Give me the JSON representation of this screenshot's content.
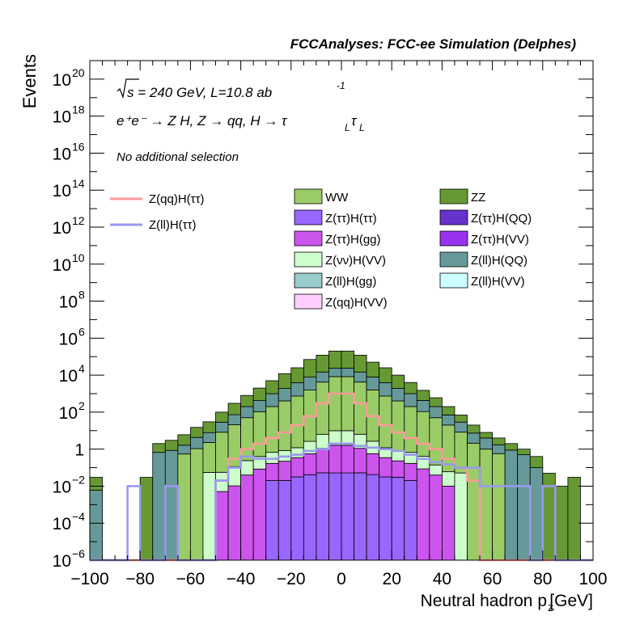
{
  "chart_data": {
    "type": "bar",
    "title": "FCCAnalyses: FCC-ee Simulation (Delphes)",
    "xlabel_main": "Neutral hadron p",
    "xlabel_sub": "z",
    "xlabel_unit": "[GeV]",
    "ylabel": "Events",
    "xlim": [
      -100,
      100
    ],
    "ylim": [
      1e-06,
      1e+21
    ],
    "y_scale": "log",
    "x_ticks": [
      -100,
      -80,
      -60,
      -40,
      -20,
      0,
      20,
      40,
      60,
      80,
      100
    ],
    "x_tick_labels": [
      "−100",
      "−80",
      "−60",
      "−40",
      "−20",
      "0",
      "20",
      "40",
      "60",
      "80",
      "100"
    ],
    "y_ticks": [
      {
        "value": 1e+20,
        "base": "10",
        "exp": "20"
      },
      {
        "value": 1e+18,
        "base": "10",
        "exp": "18"
      },
      {
        "value": 1e+16,
        "base": "10",
        "exp": "16"
      },
      {
        "value": 100000000000000.0,
        "base": "10",
        "exp": "14"
      },
      {
        "value": 1000000000000.0,
        "base": "10",
        "exp": "12"
      },
      {
        "value": 10000000000.0,
        "base": "10",
        "exp": "10"
      },
      {
        "value": 100000000.0,
        "base": "10",
        "exp": "8"
      },
      {
        "value": 1000000.0,
        "base": "10",
        "exp": "6"
      },
      {
        "value": 10000.0,
        "base": "10",
        "exp": "4"
      },
      {
        "value": 100.0,
        "base": "10",
        "exp": "2"
      },
      {
        "value": 1,
        "base": "1",
        "exp": ""
      },
      {
        "value": 0.01,
        "base": "10",
        "exp": "−2"
      },
      {
        "value": 0.0001,
        "base": "10",
        "exp": "−4"
      },
      {
        "value": 1e-06,
        "base": "10",
        "exp": "−6"
      }
    ],
    "annotations": {
      "energy_main": "s = 240 GeV, L=10.8 ab",
      "energy_sup": "-1",
      "process_main": "e⁺e⁻ → Z H, Z → qq, H → τ",
      "process_sub1": "L",
      "process_mid": "τ",
      "process_sub2": "L",
      "selection": "No additional selection"
    },
    "bin_edges_start": -100,
    "bin_width": 5,
    "stack_totals": [
      0.03,
      1e-06,
      1e-06,
      1e-06,
      0.03,
      2,
      3,
      6,
      15,
      30,
      100,
      300,
      800,
      2000,
      5000,
      12000,
      25000,
      70000,
      120000,
      200000,
      200000,
      120000,
      50000,
      25000,
      10000,
      4000,
      1500,
      600,
      200,
      70,
      20,
      8,
      4,
      2,
      1,
      0.4,
      0.05,
      0.01,
      0.03,
      1e-06
    ],
    "stack_segments": [
      {
        "name": "Z(ττ)H(ττ)",
        "color": "#9966ff",
        "values": [
          0,
          0,
          0,
          0,
          0,
          0,
          0,
          0,
          0,
          0,
          0,
          0,
          0,
          0,
          0.02,
          0.02,
          0.03,
          0.04,
          0.05,
          0.05,
          0.05,
          0.05,
          0.04,
          0.03,
          0.03,
          0.02,
          0,
          0,
          0,
          0,
          0,
          0,
          0,
          0,
          0,
          0,
          0,
          0,
          0,
          0
        ]
      },
      {
        "name": "Z(ττ)H(gg)",
        "color": "#cc55ee",
        "values": [
          0,
          0,
          0,
          0,
          0,
          0,
          0,
          0,
          0,
          0,
          0.005,
          0.01,
          0.04,
          0.08,
          0.15,
          0.2,
          0.3,
          0.5,
          1,
          1.5,
          1.5,
          1,
          0.5,
          0.3,
          0.2,
          0.15,
          0.08,
          0.04,
          0.01,
          0,
          0,
          0,
          0,
          0,
          0,
          0,
          0,
          0,
          0,
          0
        ]
      },
      {
        "name": "Z(νν)H(VV)",
        "color": "#ccffcc",
        "values": [
          0,
          0,
          0,
          0,
          0,
          0,
          0,
          0,
          0,
          0.05,
          0.05,
          0.1,
          0.2,
          0.3,
          0.5,
          0.6,
          0.8,
          2,
          5,
          8,
          8,
          5,
          2,
          0.8,
          0.6,
          0.5,
          0.3,
          0.1,
          0.05,
          0.05,
          0,
          0,
          0,
          0,
          0,
          0,
          0,
          0,
          0,
          0
        ]
      },
      {
        "name": "WW",
        "color": "#99cc66",
        "values": [
          0,
          0,
          0,
          0,
          0,
          0,
          0,
          0.5,
          1,
          2,
          8,
          20,
          50,
          100,
          200,
          400,
          700,
          1500,
          4000,
          8000,
          8000,
          4000,
          1500,
          700,
          400,
          200,
          100,
          50,
          20,
          8,
          2,
          1,
          0.5,
          0,
          0,
          0,
          0,
          0,
          0,
          0
        ]
      },
      {
        "name": "Z(ll)H(QQ)",
        "color": "#669999",
        "values": [
          0.005,
          0,
          0,
          0,
          0,
          0.5,
          0.8,
          1,
          3,
          5,
          20,
          50,
          150,
          300,
          800,
          1500,
          3000,
          6000,
          10000,
          15000,
          15000,
          10000,
          6000,
          3000,
          1500,
          800,
          300,
          150,
          50,
          20,
          5,
          3,
          1,
          0.8,
          0.5,
          0.1,
          0,
          0,
          0,
          0
        ]
      },
      {
        "name": "ZZ",
        "color": "#669933",
        "values": [
          0.02,
          0,
          0,
          0,
          0.03,
          1,
          2,
          4,
          10,
          20,
          70,
          220,
          600,
          1500,
          4000,
          10000,
          20000,
          60000,
          100000,
          170000,
          170000,
          100000,
          40000,
          20000,
          8000,
          3000,
          1000,
          400,
          130,
          40,
          12,
          4,
          2,
          1,
          0.5,
          0.3,
          0.05,
          0.01,
          0.03,
          0
        ]
      }
    ],
    "line_series": [
      {
        "name": "Z(qq)H(ττ)",
        "color": "#ff9999",
        "values": [
          1e-06,
          1e-06,
          1e-06,
          1e-06,
          1e-06,
          1e-06,
          1e-06,
          1e-06,
          1e-06,
          1e-06,
          0.02,
          0.3,
          1,
          2,
          4,
          8,
          20,
          60,
          300,
          1000,
          1000,
          300,
          60,
          20,
          8,
          4,
          2,
          1,
          0.3,
          0.1,
          0.02,
          1e-06,
          1e-06,
          1e-06,
          1e-06,
          1e-06,
          1e-06,
          1e-06,
          1e-06,
          1e-06
        ]
      },
      {
        "name": "Z(ll)H(ττ)",
        "color": "#9999ee",
        "values": [
          1e-06,
          1e-06,
          1e-06,
          0.01,
          1e-06,
          1e-06,
          0.01,
          1e-06,
          1e-06,
          1e-06,
          0.02,
          0.1,
          0.4,
          0.3,
          0.3,
          0.4,
          0.5,
          0.8,
          1,
          2,
          2,
          1.5,
          1.2,
          1,
          0.8,
          0.5,
          0.3,
          0.2,
          0.15,
          0.1,
          0.1,
          0.01,
          0.01,
          0.01,
          0.01,
          1e-06,
          0.01,
          1e-06,
          1e-06,
          1e-06
        ]
      }
    ],
    "legend_lines": [
      {
        "label": "Z(qq)H(ττ)",
        "color": "#ff9999"
      },
      {
        "label": "Z(ll)H(ττ)",
        "color": "#9999ee"
      }
    ],
    "legend_fills": [
      {
        "label": "WW",
        "color": "#99cc66"
      },
      {
        "label": "ZZ",
        "color": "#669933"
      },
      {
        "label": "Z(ττ)H(ττ)",
        "color": "#9966ff"
      },
      {
        "label": "Z(ττ)H(QQ)",
        "color": "#6633cc"
      },
      {
        "label": "Z(ττ)H(gg)",
        "color": "#cc55ee"
      },
      {
        "label": "Z(ττ)H(VV)",
        "color": "#9933ee"
      },
      {
        "label": "Z(νν)H(VV)",
        "color": "#ccffcc"
      },
      {
        "label": "Z(ll)H(QQ)",
        "color": "#669999"
      },
      {
        "label": "Z(ll)H(gg)",
        "color": "#99cccc"
      },
      {
        "label": "Z(ll)H(VV)",
        "color": "#ccffff"
      },
      {
        "label": "Z(qq)H(VV)",
        "color": "#ffccff"
      }
    ]
  }
}
